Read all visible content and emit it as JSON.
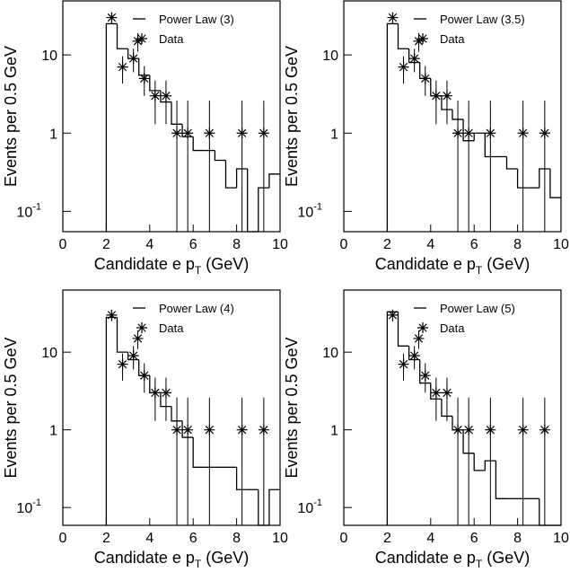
{
  "chart_data": [
    {
      "type": "histogram",
      "ylabel": "Events per 0.5 GeV",
      "xlabel": [
        "Candidate e p",
        "T",
        " (GeV)"
      ],
      "bins": [
        2,
        2.5,
        3,
        3.5,
        4,
        4.5,
        5,
        5.5,
        6,
        6.5,
        7,
        7.5,
        8,
        8.5,
        9,
        9.5,
        10
      ],
      "series": [
        {
          "name": "Power Law (3)",
          "color": "#000000",
          "values": [
            25,
            12,
            9,
            5.5,
            3.5,
            2.5,
            1.3,
            0.9,
            0.6,
            0.6,
            0.45,
            0.2,
            0.35,
            0,
            0.2,
            0.3
          ]
        }
      ],
      "points": {
        "name": "Data",
        "color": "#000000",
        "x": [
          2.25,
          2.75,
          3.25,
          3.45,
          3.75,
          4.25,
          4.75,
          5.25,
          5.75,
          6.75,
          8.25,
          9.25
        ],
        "values": [
          30,
          7,
          9,
          15,
          5,
          3,
          3,
          1,
          1,
          1,
          1,
          1
        ],
        "err_low": [
          25,
          4.3,
          6,
          11,
          3,
          1.3,
          1.3,
          0,
          0,
          0,
          0,
          0
        ],
        "err_high": [
          35,
          9.6,
          12,
          19,
          7.2,
          4.7,
          4.7,
          2.6,
          2.6,
          2.6,
          2.6,
          2.6
        ]
      },
      "xlim": [
        0,
        10
      ],
      "xticks": [
        0,
        2,
        4,
        6,
        8,
        10
      ],
      "ylim": [
        0.055,
        49
      ],
      "log_y": true,
      "yticks": [
        {
          "value": 0.1,
          "label": "10",
          "exponent": "-1"
        },
        1,
        10
      ]
    },
    {
      "type": "histogram",
      "ylabel": "Events per 0.5 GeV",
      "xlabel": [
        "Candidate e p",
        "T",
        " (GeV)"
      ],
      "bins": [
        2,
        2.5,
        3,
        3.5,
        4,
        4.5,
        5,
        5.5,
        6,
        6.5,
        7,
        7.5,
        8,
        8.5,
        9,
        9.5,
        10
      ],
      "series": [
        {
          "name": "Power Law (3.5)",
          "color": "#000000",
          "values": [
            25,
            12,
            8,
            5,
            3,
            2,
            1.5,
            0.8,
            1,
            0.5,
            0.5,
            0.35,
            0.2,
            0.2,
            0.35,
            0.15
          ]
        }
      ],
      "points": {
        "name": "Data",
        "color": "#000000",
        "x": [
          2.25,
          2.75,
          3.25,
          3.45,
          3.75,
          4.25,
          4.75,
          5.25,
          5.75,
          6.75,
          8.25,
          9.25
        ],
        "values": [
          30,
          7,
          9,
          15,
          5,
          3,
          3,
          1,
          1,
          1,
          1,
          1
        ],
        "err_low": [
          25,
          4.3,
          6,
          11,
          3,
          1.3,
          1.3,
          0,
          0,
          0,
          0,
          0
        ],
        "err_high": [
          35,
          9.6,
          12,
          19,
          7.2,
          4.7,
          4.7,
          2.6,
          2.6,
          2.6,
          2.6,
          2.6
        ]
      },
      "xlim": [
        0,
        10
      ],
      "xticks": [
        0,
        2,
        4,
        6,
        8,
        10
      ],
      "ylim": [
        0.055,
        49
      ],
      "log_y": true,
      "yticks": [
        {
          "value": 0.1,
          "label": "10",
          "exponent": "-1"
        },
        1,
        10
      ]
    },
    {
      "type": "histogram",
      "ylabel": "Events per 0.5 GeV",
      "xlabel": [
        "Candidate e p",
        "T",
        " (GeV)"
      ],
      "bins": [
        2,
        2.5,
        3,
        3.5,
        4,
        4.5,
        5,
        5.5,
        6,
        6.5,
        7,
        7.5,
        8,
        8.5,
        9,
        9.5,
        10
      ],
      "series": [
        {
          "name": "Power Law (4)",
          "color": "#000000",
          "values": [
            28,
            10,
            8,
            5,
            3,
            2,
            1.3,
            0.8,
            0.33,
            0.33,
            0.33,
            0.33,
            0.17,
            0.17,
            0,
            0.17
          ]
        }
      ],
      "points": {
        "name": "Data",
        "color": "#000000",
        "x": [
          2.25,
          2.75,
          3.25,
          3.45,
          3.75,
          4.25,
          4.75,
          5.25,
          5.75,
          6.75,
          8.25,
          9.25
        ],
        "values": [
          30,
          7,
          9,
          15,
          5,
          3,
          3,
          1,
          1,
          1,
          1,
          1
        ],
        "err_low": [
          25,
          4.3,
          6,
          11,
          3,
          1.3,
          1.3,
          0,
          0,
          0,
          0,
          0
        ],
        "err_high": [
          35,
          9.6,
          12,
          19,
          7.2,
          4.7,
          4.7,
          2.6,
          2.6,
          2.6,
          2.6,
          2.6
        ]
      },
      "xlim": [
        0,
        10
      ],
      "xticks": [
        0,
        2,
        4,
        6,
        8,
        10
      ],
      "ylim": [
        0.059,
        63
      ],
      "log_y": true,
      "yticks": [
        {
          "value": 0.1,
          "label": "10",
          "exponent": "-1"
        },
        1,
        10
      ]
    },
    {
      "type": "histogram",
      "ylabel": "Events per 0.5 GeV",
      "xlabel": [
        "Candidate e p",
        "T",
        " (GeV)"
      ],
      "bins": [
        2,
        2.5,
        3,
        3.5,
        4,
        4.5,
        5,
        5.5,
        6,
        6.5,
        7,
        7.5,
        8,
        8.5,
        9,
        9.5,
        10
      ],
      "series": [
        {
          "name": "Power Law (5)",
          "color": "#000000",
          "values": [
            33,
            12,
            8,
            4,
            2.5,
            1.5,
            1,
            0.5,
            0.3,
            0.4,
            0.13,
            0.13,
            0.13,
            0.13,
            0,
            0
          ]
        }
      ],
      "points": {
        "name": "Data",
        "color": "#000000",
        "x": [
          2.25,
          2.75,
          3.25,
          3.45,
          3.75,
          4.25,
          4.75,
          5.25,
          5.75,
          6.75,
          8.25,
          9.25
        ],
        "values": [
          30,
          7,
          9,
          15,
          5,
          3,
          3,
          1,
          1,
          1,
          1,
          1
        ],
        "err_low": [
          25,
          4.3,
          6,
          11,
          3,
          1.3,
          1.3,
          0,
          0,
          0,
          0,
          0
        ],
        "err_high": [
          35,
          9.6,
          12,
          19,
          7.2,
          4.7,
          4.7,
          2.6,
          2.6,
          2.6,
          2.6,
          2.6
        ]
      },
      "xlim": [
        0,
        10
      ],
      "xticks": [
        0,
        2,
        4,
        6,
        8,
        10
      ],
      "ylim": [
        0.059,
        63
      ],
      "log_y": true,
      "yticks": [
        {
          "value": 0.1,
          "label": "10",
          "exponent": "-1"
        },
        1,
        10
      ]
    }
  ]
}
